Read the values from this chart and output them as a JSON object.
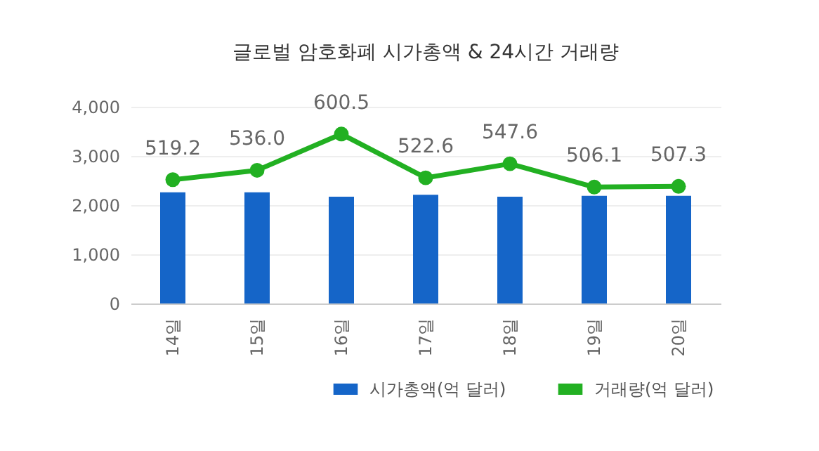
{
  "chart_data": {
    "type": "bar",
    "title": "글로벌 암호화폐 시가총액 & 24시간 거래량",
    "categories": [
      "14일",
      "15일",
      "16일",
      "17일",
      "18일",
      "19일",
      "20일"
    ],
    "series": [
      {
        "name": "시가총액(억 달러)",
        "color": "#1565c8",
        "values": [
          2260,
          2260,
          2170,
          2210,
          2170,
          2190,
          2190
        ]
      },
      {
        "name": "거래량(억 달러)",
        "type": "line",
        "axis": "y2",
        "color": "#22b022",
        "marker": "circle",
        "values": [
          519.2,
          536.0,
          600.5,
          522.6,
          547.6,
          506.1,
          507.3
        ],
        "value_labels": [
          "519.2",
          "536.0",
          "600.5",
          "522.6",
          "547.6",
          "506.1",
          "507.3"
        ]
      }
    ],
    "ylim": [
      0,
      4000
    ],
    "yticks": [
      0,
      {
        "value": 1000,
        "label": "1,000"
      },
      {
        "value": 2000,
        "label": "2,000"
      },
      {
        "value": 3000,
        "label": "3,000"
      },
      {
        "value": 4000,
        "label": "4,000"
      }
    ],
    "y2lim": [
      299,
      649
    ],
    "grid": "y",
    "legend": "bottom right"
  }
}
